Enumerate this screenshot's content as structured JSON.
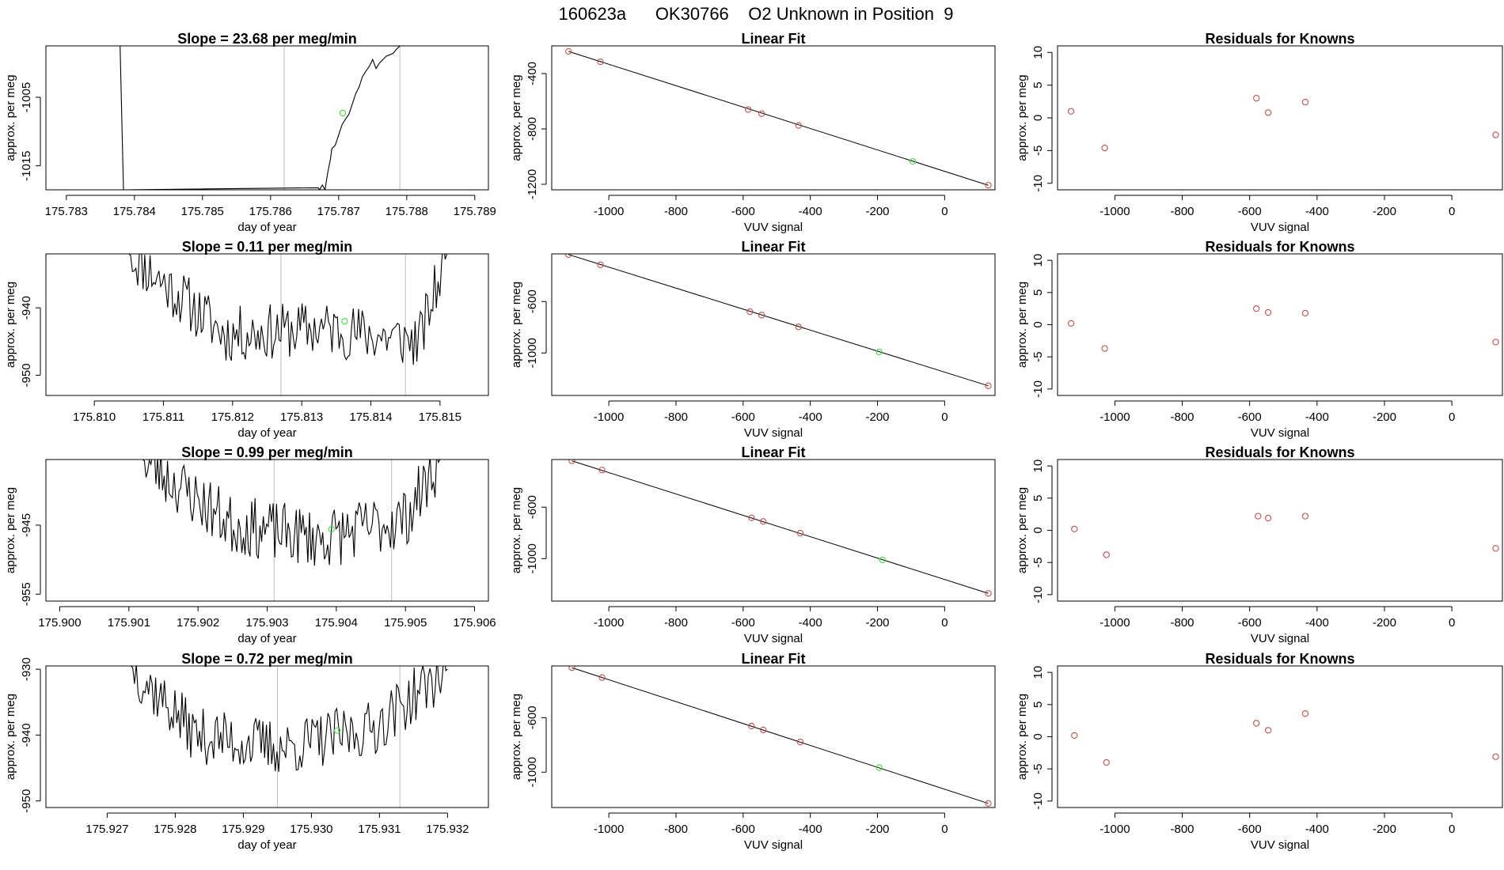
{
  "page_title": "160623a      OK30766    O2 Unknown in Position  9",
  "colors": {
    "line": "#000000",
    "known_point": "#c0504d",
    "unknown_point": "#44dd44",
    "gate_line": "#bbbbbb",
    "frame": "#000000"
  },
  "chart_data": [
    {
      "type": "line",
      "row": 0,
      "col": 0,
      "title": "Slope =  23.68  per meg/min",
      "xlabel": "day of year",
      "ylabel": "approx. per meg",
      "xlim": [
        175.7827,
        175.7892
      ],
      "ylim": [
        -1018.5,
        -997.5
      ],
      "xticks": [
        175.783,
        175.784,
        175.785,
        175.786,
        175.787,
        175.788,
        175.789
      ],
      "xtick_labels": [
        "175.783",
        "175.784",
        "175.785",
        "175.786",
        "175.787",
        "175.788",
        "175.789"
      ],
      "yticks": [
        -1005,
        -1015
      ],
      "ytick_labels": [
        "-1005",
        "-1015"
      ],
      "vlines": [
        175.7862,
        175.7879
      ],
      "series": [
        {
          "name": "trace",
          "x": [
            175.78379,
            175.78384,
            175.7867,
            175.78672,
            175.78676,
            175.7868,
            175.78684,
            175.78688,
            175.7869,
            175.78695,
            175.787,
            175.78705,
            175.7871,
            175.78715,
            175.7872,
            175.78725,
            175.7873,
            175.78735,
            175.7874,
            175.78745,
            175.7875,
            175.78755,
            175.7876,
            175.7877,
            175.7878,
            175.78785,
            175.7879
          ],
          "y": [
            -997.5,
            -1018.5,
            -1018.2,
            -1018.5,
            -1017.8,
            -1018.5,
            -1016.0,
            -1014.0,
            -1012.5,
            -1012.0,
            -1010.5,
            -1009.0,
            -1008.2,
            -1007.5,
            -1006.0,
            -1004.5,
            -1003.5,
            -1002.0,
            -1001.2,
            -1000.5,
            -999.5,
            -1000.8,
            -1000.0,
            -999.0,
            -998.6,
            -998.0,
            -997.5
          ]
        }
      ],
      "unknown_point": {
        "x": 175.78706,
        "y": -1007.3
      }
    },
    {
      "type": "scatter",
      "row": 0,
      "col": 1,
      "title": "Linear Fit",
      "xlabel": "VUV signal",
      "ylabel": "approx. per meg",
      "xlim": [
        -1170,
        150
      ],
      "ylim": [
        -1240,
        -200
      ],
      "xticks": [
        -1000,
        -800,
        -600,
        -400,
        -200,
        0
      ],
      "xtick_labels": [
        "-1000",
        "-800",
        "-600",
        "-400",
        "-200",
        "0"
      ],
      "yticks": [
        -400,
        -800,
        -1200
      ],
      "ytick_labels": [
        "-400",
        "-800",
        "-1200"
      ],
      "fit_line": {
        "x": [
          -1120,
          130
        ],
        "y": [
          -240,
          -1207
        ]
      },
      "known_points": {
        "x": [
          -1120,
          -1025,
          -585,
          -545,
          -435,
          130
        ],
        "y": [
          -240,
          -315,
          -660,
          -690,
          -775,
          -1207
        ]
      },
      "unknown_point": {
        "x": -95,
        "y": -1035
      }
    },
    {
      "type": "scatter",
      "row": 0,
      "col": 2,
      "title": "Residuals for Knowns",
      "xlabel": "VUV signal",
      "ylabel": "approx. per meg",
      "xlim": [
        -1170,
        150
      ],
      "ylim": [
        -11,
        11
      ],
      "xticks": [
        -1000,
        -800,
        -600,
        -400,
        -200,
        0
      ],
      "xtick_labels": [
        "-1000",
        "-800",
        "-600",
        "-400",
        "-200",
        "0"
      ],
      "yticks": [
        10,
        5,
        0,
        -5,
        -10
      ],
      "ytick_labels": [
        "10",
        "5",
        "0",
        "-5",
        "-10"
      ],
      "known_points": {
        "x": [
          -1130,
          -1030,
          -580,
          -545,
          -435,
          130
        ],
        "y": [
          1.0,
          -4.6,
          3.0,
          0.8,
          2.4,
          -2.6
        ]
      }
    },
    {
      "type": "line",
      "row": 1,
      "col": 0,
      "title": "Slope =  0.11  per meg/min",
      "xlabel": "day of year",
      "ylabel": "approx. per meg",
      "xlim": [
        175.8093,
        175.8157
      ],
      "ylim": [
        -953,
        -932
      ],
      "xticks": [
        175.81,
        175.811,
        175.812,
        175.813,
        175.814,
        175.815
      ],
      "xtick_labels": [
        "175.810",
        "175.811",
        "175.812",
        "175.813",
        "175.814",
        "175.815"
      ],
      "yticks": [
        -940,
        -950
      ],
      "ytick_labels": [
        "-940",
        "-950"
      ],
      "vlines": [
        175.8127,
        175.8145
      ],
      "series": [
        {
          "name": "trace",
          "x": [
            175.8105,
            175.8119,
            175.8133,
            175.8147,
            175.8151
          ],
          "y": [
            -932,
            -944,
            -943,
            -945,
            -932
          ]
        }
      ],
      "noise": {
        "seed": 11,
        "amp": 4.2
      },
      "unknown_point": {
        "x": 175.81362,
        "y": -942.0
      }
    },
    {
      "type": "scatter",
      "row": 1,
      "col": 1,
      "title": "Linear Fit",
      "xlabel": "VUV signal",
      "ylabel": "approx. per meg",
      "xlim": [
        -1170,
        150
      ],
      "ylim": [
        -1330,
        -230
      ],
      "xticks": [
        -1000,
        -800,
        -600,
        -400,
        -200,
        0
      ],
      "xtick_labels": [
        "-1000",
        "-800",
        "-600",
        "-400",
        "-200",
        "0"
      ],
      "yticks": [
        -600,
        -1000
      ],
      "ytick_labels": [
        "-600",
        "-1000"
      ],
      "fit_line": {
        "x": [
          -1120,
          130
        ],
        "y": [
          -235,
          -1255
        ]
      },
      "known_points": {
        "x": [
          -1120,
          -1025,
          -580,
          -545,
          -435,
          130
        ],
        "y": [
          -235,
          -315,
          -679,
          -706,
          -797,
          -1255
        ]
      },
      "unknown_point": {
        "x": -195,
        "y": -992
      }
    },
    {
      "type": "scatter",
      "row": 1,
      "col": 2,
      "title": "Residuals for Knowns",
      "xlabel": "VUV signal",
      "ylabel": "approx. per meg",
      "xlim": [
        -1170,
        150
      ],
      "ylim": [
        -11,
        11
      ],
      "xticks": [
        -1000,
        -800,
        -600,
        -400,
        -200,
        0
      ],
      "xtick_labels": [
        "-1000",
        "-800",
        "-600",
        "-400",
        "-200",
        "0"
      ],
      "yticks": [
        10,
        5,
        0,
        -5,
        -10
      ],
      "ytick_labels": [
        "10",
        "5",
        "0",
        "-5",
        "-10"
      ],
      "known_points": {
        "x": [
          -1130,
          -1030,
          -580,
          -545,
          -435,
          130
        ],
        "y": [
          0.2,
          -3.7,
          2.5,
          1.9,
          1.8,
          -2.7
        ]
      }
    },
    {
      "type": "line",
      "row": 2,
      "col": 0,
      "title": "Slope =  0.99  per meg/min",
      "xlabel": "day of year",
      "ylabel": "approx. per meg",
      "xlim": [
        175.8998,
        175.9062
      ],
      "ylim": [
        -956,
        -935.5
      ],
      "xticks": [
        175.9,
        175.901,
        175.902,
        175.903,
        175.904,
        175.905,
        175.906
      ],
      "xtick_labels": [
        "175.900",
        "175.901",
        "175.902",
        "175.903",
        "175.904",
        "175.905",
        "175.906"
      ],
      "yticks": [
        -945,
        -955
      ],
      "ytick_labels": [
        "-945",
        "-955"
      ],
      "vlines": [
        175.9031,
        175.9048
      ],
      "series": [
        {
          "name": "trace",
          "x": [
            175.9012,
            175.9025,
            175.9038,
            175.905,
            175.9055
          ],
          "y": [
            -935.5,
            -945,
            -947,
            -944,
            -935.5
          ]
        }
      ],
      "noise": {
        "seed": 23,
        "amp": 4.4
      },
      "unknown_point": {
        "x": 175.90393,
        "y": -945.6
      }
    },
    {
      "type": "scatter",
      "row": 2,
      "col": 1,
      "title": "Linear Fit",
      "xlabel": "VUV signal",
      "ylabel": "approx. per meg",
      "xlim": [
        -1170,
        150
      ],
      "ylim": [
        -1330,
        -230
      ],
      "xticks": [
        -1000,
        -800,
        -600,
        -400,
        -200,
        0
      ],
      "xtick_labels": [
        "-1000",
        "-800",
        "-600",
        "-400",
        "-200",
        "0"
      ],
      "yticks": [
        -600,
        -1000
      ],
      "ytick_labels": [
        "-600",
        "-1000"
      ],
      "fit_line": {
        "x": [
          -1110,
          130
        ],
        "y": [
          -240,
          -1270
        ]
      },
      "known_points": {
        "x": [
          -1110,
          -1020,
          -575,
          -540,
          -430,
          130
        ],
        "y": [
          -240,
          -312,
          -683,
          -711,
          -802,
          -1270
        ]
      },
      "unknown_point": {
        "x": -185,
        "y": -1010
      }
    },
    {
      "type": "scatter",
      "row": 2,
      "col": 2,
      "title": "Residuals for Knowns",
      "xlabel": "VUV signal",
      "ylabel": "approx. per meg",
      "xlim": [
        -1170,
        150
      ],
      "ylim": [
        -11,
        11
      ],
      "xticks": [
        -1000,
        -800,
        -600,
        -400,
        -200,
        0
      ],
      "xtick_labels": [
        "-1000",
        "-800",
        "-600",
        "-400",
        "-200",
        "0"
      ],
      "yticks": [
        10,
        5,
        0,
        -5,
        -10
      ],
      "ytick_labels": [
        "10",
        "5",
        "0",
        "-5",
        "-10"
      ],
      "known_points": {
        "x": [
          -1120,
          -1025,
          -575,
          -545,
          -435,
          130
        ],
        "y": [
          0.2,
          -3.8,
          2.2,
          1.9,
          2.2,
          -2.8
        ]
      }
    },
    {
      "type": "line",
      "row": 3,
      "col": 0,
      "title": "Slope =  0.72  per meg/min",
      "xlabel": "day of year",
      "ylabel": "approx. per meg",
      "xlim": [
        175.9261,
        175.9326
      ],
      "ylim": [
        -951,
        -929.5
      ],
      "xticks": [
        175.927,
        175.928,
        175.929,
        175.93,
        175.931,
        175.932
      ],
      "xtick_labels": [
        "175.927",
        "175.928",
        "175.929",
        "175.930",
        "175.931",
        "175.932"
      ],
      "yticks": [
        -930,
        -940,
        -950
      ],
      "ytick_labels": [
        "-930",
        "-940",
        "-950"
      ],
      "vlines": [
        175.9295,
        175.9313
      ],
      "series": [
        {
          "name": "trace",
          "x": [
            175.92735,
            175.9283,
            175.9296,
            175.9309,
            175.932
          ],
          "y": [
            -929.5,
            -940,
            -942,
            -939,
            -930
          ]
        }
      ],
      "noise": {
        "seed": 37,
        "amp": 4.3
      },
      "unknown_point": {
        "x": 175.93038,
        "y": -939.3
      }
    },
    {
      "type": "scatter",
      "row": 3,
      "col": 1,
      "title": "Linear Fit",
      "xlabel": "VUV signal",
      "ylabel": "approx. per meg",
      "xlim": [
        -1170,
        150
      ],
      "ylim": [
        -1260,
        -220
      ],
      "xticks": [
        -1000,
        -800,
        -600,
        -400,
        -200,
        0
      ],
      "xtick_labels": [
        "-1000",
        "-800",
        "-600",
        "-400",
        "-200",
        "0"
      ],
      "yticks": [
        -600,
        -1000
      ],
      "ytick_labels": [
        "-600",
        "-1000"
      ],
      "fit_line": {
        "x": [
          -1110,
          130
        ],
        "y": [
          -233,
          -1230
        ]
      },
      "known_points": {
        "x": [
          -1110,
          -1020,
          -575,
          -540,
          -430,
          130
        ],
        "y": [
          -233,
          -305,
          -662,
          -690,
          -778,
          -1230
        ]
      },
      "unknown_point": {
        "x": -195,
        "y": -967
      }
    },
    {
      "type": "scatter",
      "row": 3,
      "col": 2,
      "title": "Residuals for Knowns",
      "xlabel": "VUV signal",
      "ylabel": "approx. per meg",
      "xlim": [
        -1170,
        150
      ],
      "ylim": [
        -11,
        11
      ],
      "xticks": [
        -1000,
        -800,
        -600,
        -400,
        -200,
        0
      ],
      "xtick_labels": [
        "-1000",
        "-800",
        "-600",
        "-400",
        "-200",
        "0"
      ],
      "yticks": [
        10,
        5,
        0,
        -5,
        -10
      ],
      "ytick_labels": [
        "10",
        "5",
        "0",
        "-5",
        "-10"
      ],
      "known_points": {
        "x": [
          -1120,
          -1025,
          -580,
          -545,
          -435,
          130
        ],
        "y": [
          0.2,
          -4.0,
          2.1,
          1.0,
          3.6,
          -3.1
        ]
      }
    }
  ]
}
